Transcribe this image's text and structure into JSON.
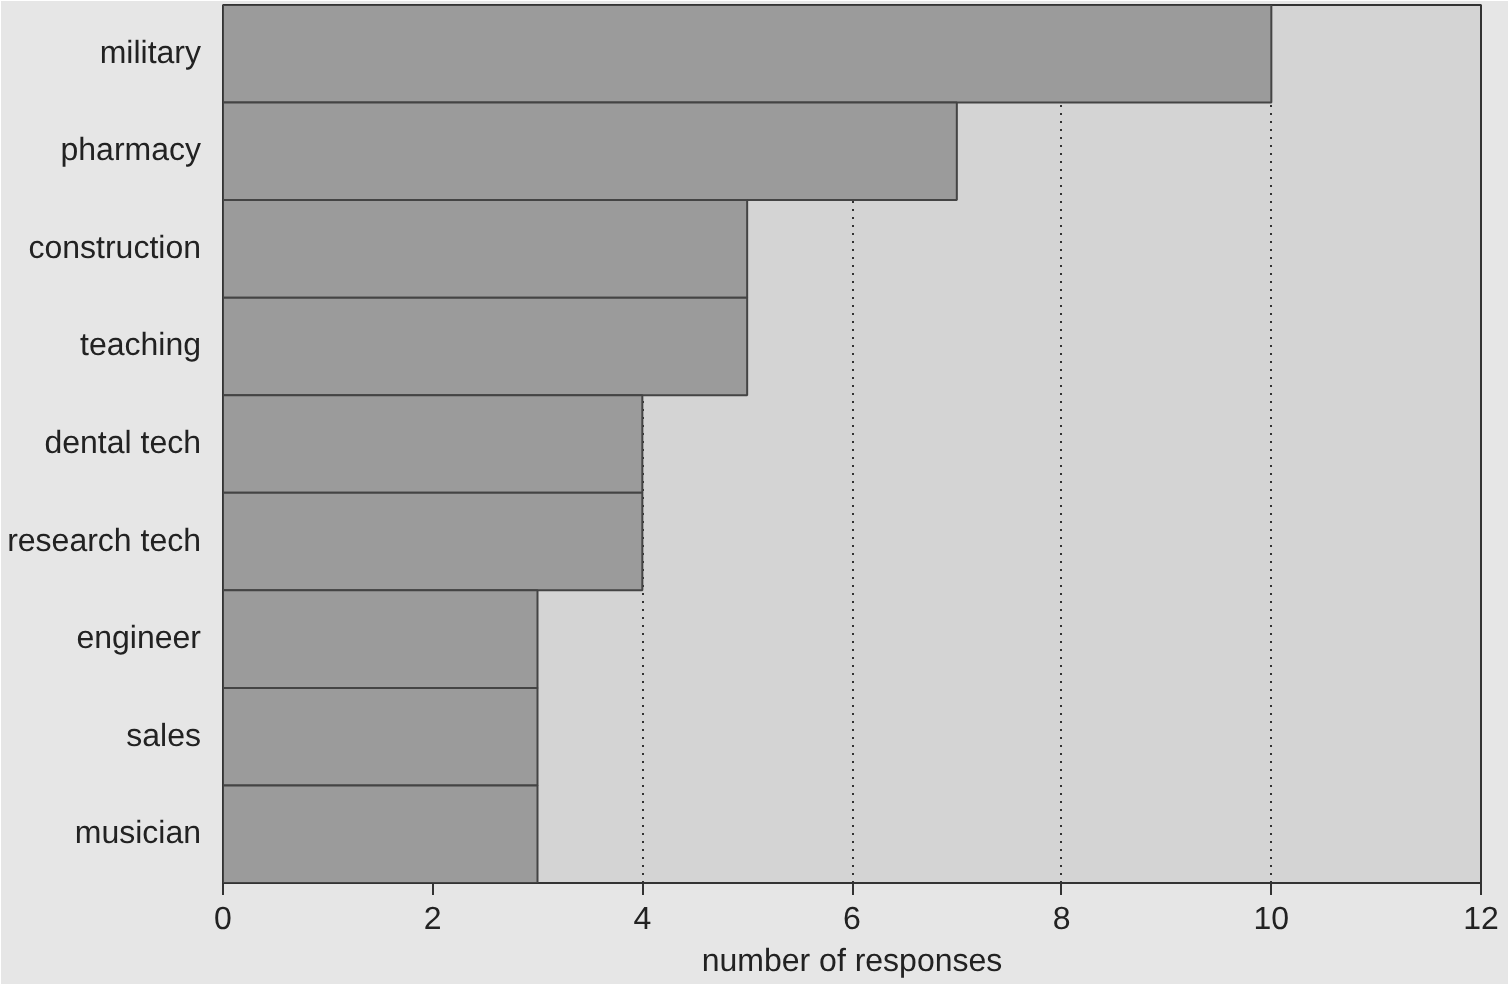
{
  "chart_data": {
    "type": "bar",
    "orientation": "horizontal",
    "xlabel": "number of responses",
    "categories": [
      "military",
      "pharmacy",
      "construction",
      "teaching",
      "dental tech",
      "research tech",
      "engineer",
      "sales",
      "musician"
    ],
    "values": [
      10,
      7,
      5,
      5,
      4,
      4,
      3,
      3,
      3
    ],
    "color": "#9b9b9b",
    "xlim": [
      0,
      12
    ],
    "xticks": [
      0,
      2,
      4,
      6,
      8,
      10,
      12
    ],
    "grid": "x"
  }
}
